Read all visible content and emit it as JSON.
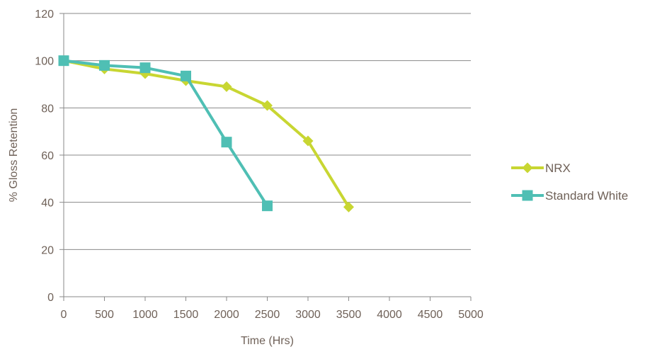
{
  "chart_data": {
    "type": "line",
    "title": "",
    "xlabel": "Time (Hrs)",
    "ylabel": "% Gloss Retention",
    "xlim": [
      0,
      5000
    ],
    "ylim": [
      0,
      120
    ],
    "x_ticks": [
      0,
      500,
      1000,
      1500,
      2000,
      2500,
      3000,
      3500,
      4000,
      4500,
      5000
    ],
    "x_tick_labels": [
      "0",
      "500",
      "1000",
      "1500",
      "2000",
      "2500",
      "3000",
      "3500",
      "4000",
      "4500",
      "5000"
    ],
    "y_ticks": [
      0,
      20,
      40,
      60,
      80,
      100,
      120
    ],
    "y_tick_labels": [
      "0",
      "20",
      "40",
      "60",
      "80",
      "100",
      "120"
    ],
    "grid": "horizontal",
    "legend_position": "right",
    "series": [
      {
        "name": "NRX",
        "color": "#c8d632",
        "marker": "diamond",
        "x": [
          0,
          500,
          1000,
          1500,
          2000,
          2500,
          3000,
          3500
        ],
        "y": [
          100,
          96.5,
          94.5,
          91.5,
          89,
          81,
          66,
          38
        ]
      },
      {
        "name": "Standard White",
        "color": "#4fbfb4",
        "marker": "square",
        "x": [
          0,
          500,
          1000,
          1500,
          2000,
          2500
        ],
        "y": [
          100,
          98,
          97,
          93.5,
          65.5,
          38.5
        ]
      }
    ]
  }
}
